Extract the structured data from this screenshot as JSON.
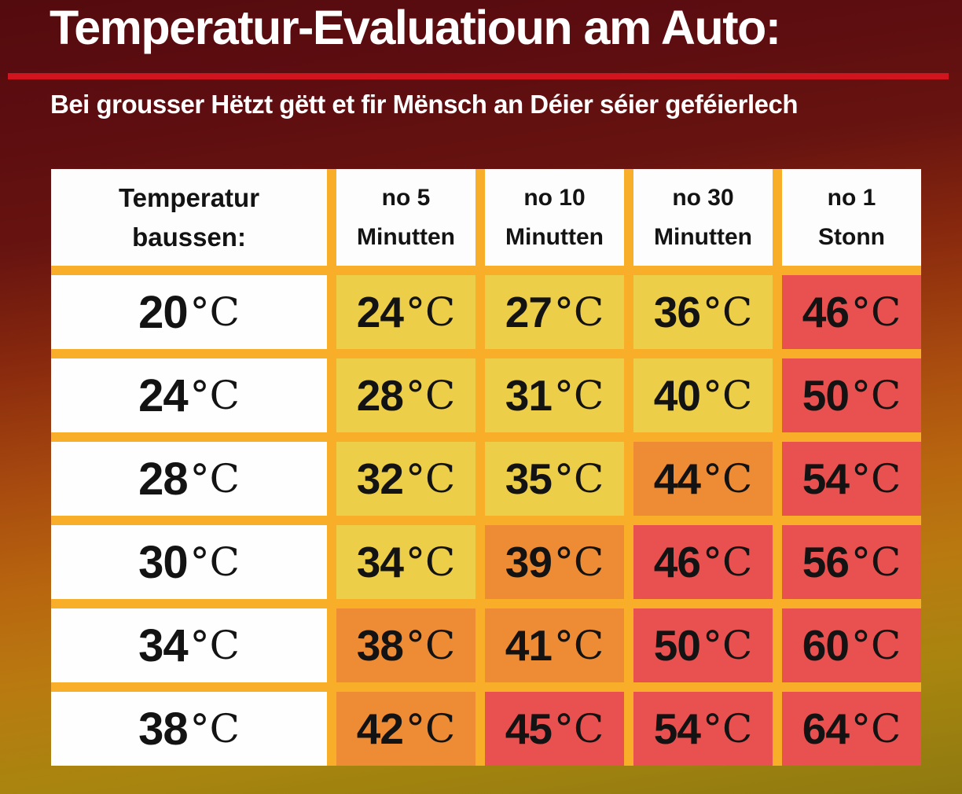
{
  "title": "Temperatur-Evaluatioun am Auto:",
  "subtitle": "Bei grousser Hëtzt gëtt et fir Mënsch an Déier séier geféierlech",
  "colors": {
    "background_top": "#5d0d10",
    "background_middle": "#b8660f",
    "background_bottom": "#8f7a10",
    "divider_red": "#d2141f",
    "table_gap_gold": "#f9ae2a",
    "cell_white": "#fefefe",
    "cell_yellow": "#edce49",
    "cell_orange": "#ee8c36",
    "cell_red": "#e85150",
    "text_light": "#ffffff",
    "text_dark": "#131313"
  },
  "table": {
    "header": [
      {
        "line1": "Temperatur",
        "line2": "baussen:"
      },
      {
        "line1": "no 5",
        "line2": "Minutten"
      },
      {
        "line1": "no 10",
        "line2": "Minutten"
      },
      {
        "line1": "no 30",
        "line2": "Minutten"
      },
      {
        "line1": "no 1",
        "line2": "Stonn"
      }
    ],
    "rows": [
      {
        "cells": [
          {
            "value": "20",
            "unit": "°C",
            "level": "white"
          },
          {
            "value": "24",
            "unit": "°C",
            "level": "yellow"
          },
          {
            "value": "27",
            "unit": "°C",
            "level": "yellow"
          },
          {
            "value": "36",
            "unit": "°C",
            "level": "yellow"
          },
          {
            "value": "46",
            "unit": "°C",
            "level": "red"
          }
        ]
      },
      {
        "cells": [
          {
            "value": "24",
            "unit": "°C",
            "level": "white"
          },
          {
            "value": "28",
            "unit": "°C",
            "level": "yellow"
          },
          {
            "value": "31",
            "unit": "°C",
            "level": "yellow"
          },
          {
            "value": "40",
            "unit": "°C",
            "level": "yellow"
          },
          {
            "value": "50",
            "unit": "°C",
            "level": "red"
          }
        ]
      },
      {
        "cells": [
          {
            "value": "28",
            "unit": "°C",
            "level": "white"
          },
          {
            "value": "32",
            "unit": "°C",
            "level": "yellow"
          },
          {
            "value": "35",
            "unit": "°C",
            "level": "yellow"
          },
          {
            "value": "44",
            "unit": "°C",
            "level": "orange"
          },
          {
            "value": "54",
            "unit": "°C",
            "level": "red"
          }
        ]
      },
      {
        "cells": [
          {
            "value": "30",
            "unit": "°C",
            "level": "white"
          },
          {
            "value": "34",
            "unit": "°C",
            "level": "yellow"
          },
          {
            "value": "39",
            "unit": "°C",
            "level": "orange"
          },
          {
            "value": "46",
            "unit": "°C",
            "level": "red"
          },
          {
            "value": "56",
            "unit": "°C",
            "level": "red"
          }
        ]
      },
      {
        "cells": [
          {
            "value": "34",
            "unit": "°C",
            "level": "white"
          },
          {
            "value": "38",
            "unit": "°C",
            "level": "orange"
          },
          {
            "value": "41",
            "unit": "°C",
            "level": "orange"
          },
          {
            "value": "50",
            "unit": "°C",
            "level": "red"
          },
          {
            "value": "60",
            "unit": "°C",
            "level": "red"
          }
        ]
      },
      {
        "cells": [
          {
            "value": "38",
            "unit": "°C",
            "level": "white"
          },
          {
            "value": "42",
            "unit": "°C",
            "level": "orange"
          },
          {
            "value": "45",
            "unit": "°C",
            "level": "red"
          },
          {
            "value": "54",
            "unit": "°C",
            "level": "red"
          },
          {
            "value": "64",
            "unit": "°C",
            "level": "red"
          }
        ]
      }
    ]
  },
  "chart_data": {
    "type": "table",
    "title": "Temperatur-Evaluatioun am Auto:",
    "subtitle": "Bei grousser Hëtzt gëtt et fir Mënsch an Déier séier geféierlech",
    "columns": [
      "Temperatur baussen:",
      "no 5 Minutten",
      "no 10 Minutten",
      "no 30 Minutten",
      "no 1 Stonn"
    ],
    "unit": "°C",
    "rows": [
      {
        "outside": 20,
        "after_5_min": 24,
        "after_10_min": 27,
        "after_30_min": 36,
        "after_1_hour": 46
      },
      {
        "outside": 24,
        "after_5_min": 28,
        "after_10_min": 31,
        "after_30_min": 40,
        "after_1_hour": 50
      },
      {
        "outside": 28,
        "after_5_min": 32,
        "after_10_min": 35,
        "after_30_min": 44,
        "after_1_hour": 54
      },
      {
        "outside": 30,
        "after_5_min": 34,
        "after_10_min": 39,
        "after_30_min": 46,
        "after_1_hour": 56
      },
      {
        "outside": 34,
        "after_5_min": 38,
        "after_10_min": 41,
        "after_30_min": 50,
        "after_1_hour": 60
      },
      {
        "outside": 38,
        "after_5_min": 42,
        "after_10_min": 45,
        "after_30_min": 54,
        "after_1_hour": 64
      }
    ],
    "cell_heat_levels": [
      [
        "white",
        "yellow",
        "yellow",
        "yellow",
        "red"
      ],
      [
        "white",
        "yellow",
        "yellow",
        "yellow",
        "red"
      ],
      [
        "white",
        "yellow",
        "yellow",
        "orange",
        "red"
      ],
      [
        "white",
        "yellow",
        "orange",
        "red",
        "red"
      ],
      [
        "white",
        "orange",
        "orange",
        "red",
        "red"
      ],
      [
        "white",
        "orange",
        "red",
        "red",
        "red"
      ]
    ],
    "legend_position": "none",
    "grid": false
  }
}
